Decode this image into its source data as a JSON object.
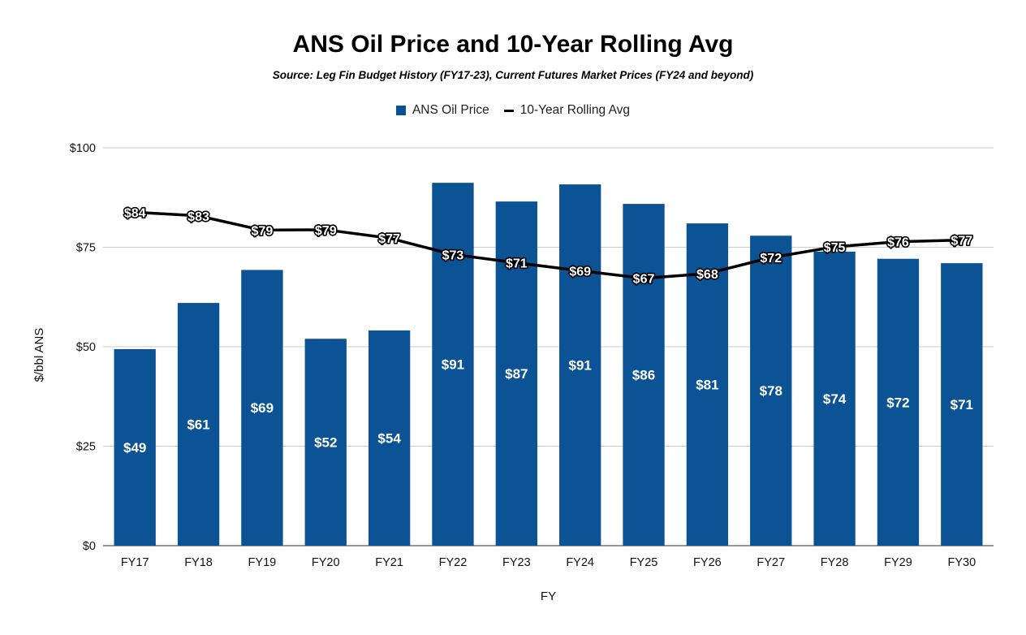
{
  "chart_data": {
    "type": "bar",
    "title": "ANS Oil Price and 10-Year Rolling Avg",
    "subtitle": "Source: Leg Fin Budget History (FY17-23), Current Futures Market Prices (FY24 and beyond)",
    "xlabel": "FY",
    "ylabel": "$/bbl ANS",
    "ylim": [
      0,
      100
    ],
    "y_ticks": [
      0,
      25,
      50,
      75,
      100
    ],
    "y_tick_labels": [
      "$0",
      "$25",
      "$50",
      "$75",
      "$100"
    ],
    "grid": true,
    "legend_position": "top",
    "categories": [
      "FY17",
      "FY18",
      "FY19",
      "FY20",
      "FY21",
      "FY22",
      "FY23",
      "FY24",
      "FY25",
      "FY26",
      "FY27",
      "FY28",
      "FY29",
      "FY30"
    ],
    "series": [
      {
        "name": "ANS Oil Price",
        "type": "bar",
        "color": "#0b5394",
        "values": [
          49.4,
          61.0,
          69.3,
          52.0,
          54.1,
          91.2,
          86.5,
          90.8,
          85.9,
          81.0,
          77.9,
          73.9,
          72.1,
          71.0
        ],
        "labels": [
          "$49",
          "$61",
          "$69",
          "$52",
          "$54",
          "$91",
          "$87",
          "$91",
          "$86",
          "$81",
          "$78",
          "$74",
          "$72",
          "$71"
        ]
      },
      {
        "name": "10-Year Rolling Avg",
        "type": "line",
        "color": "#000000",
        "values": [
          83.8,
          82.9,
          79.3,
          79.4,
          77.3,
          73.2,
          71.1,
          69.1,
          67.2,
          68.4,
          72.4,
          75.1,
          76.4,
          76.8
        ],
        "labels": [
          "$84",
          "$83",
          "$79",
          "$79",
          "$77",
          "$73",
          "$71",
          "$69",
          "$67",
          "$68",
          "$72",
          "$75",
          "$76",
          "$77"
        ]
      }
    ]
  }
}
